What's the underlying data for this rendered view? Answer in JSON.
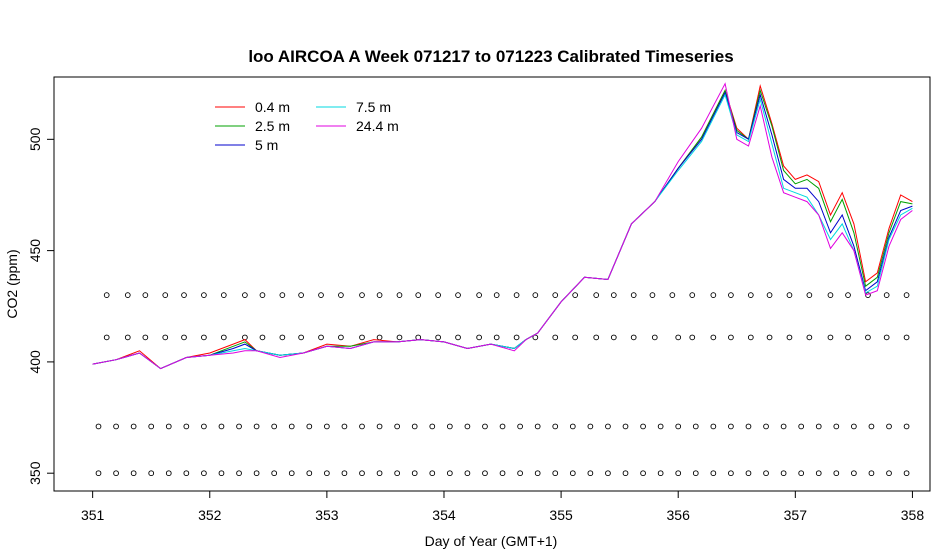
{
  "chart_data": {
    "type": "line",
    "title": "loo AIRCOA A  Week 071217 to 071223  Calibrated Timeseries",
    "xlabel": "Day of Year (GMT+1)",
    "ylabel": "CO2 (ppm)",
    "xlim": [
      350.67,
      358.15
    ],
    "ylim": [
      342,
      528
    ],
    "x_ticks": [
      351,
      352,
      353,
      354,
      355,
      356,
      357,
      358
    ],
    "y_ticks": [
      350,
      400,
      450,
      500
    ],
    "legend_position": "top-left",
    "series": [
      {
        "name": "0.4 m",
        "color": "#ff0000",
        "x": [
          351.0,
          351.2,
          351.4,
          351.58,
          351.8,
          352.0,
          352.2,
          352.3,
          352.4,
          352.6,
          352.8,
          353.0,
          353.2,
          353.4,
          353.6,
          353.8,
          354.0,
          354.2,
          354.4,
          354.6,
          354.7,
          354.8,
          355.0,
          355.2,
          355.4,
          355.6,
          355.8,
          356.0,
          356.2,
          356.4,
          356.5,
          356.6,
          356.7,
          356.8,
          356.9,
          357.0,
          357.1,
          357.2,
          357.3,
          357.4,
          357.5,
          357.6,
          357.7,
          357.8,
          357.9,
          358.0
        ],
        "y": [
          399,
          401,
          405,
          397,
          402,
          404,
          408,
          410,
          405,
          403,
          404,
          408,
          407,
          410,
          409,
          410,
          409,
          406,
          408,
          406,
          410,
          413,
          427,
          438,
          437,
          462,
          472,
          487,
          501,
          522,
          505,
          500,
          524,
          507,
          488,
          482,
          484,
          481,
          466,
          476,
          462,
          436,
          440,
          460,
          475,
          472
        ]
      },
      {
        "name": "2.5 m",
        "color": "#00a000",
        "x": [
          351.0,
          351.2,
          351.4,
          351.58,
          351.8,
          352.0,
          352.2,
          352.3,
          352.4,
          352.6,
          352.8,
          353.0,
          353.2,
          353.4,
          353.6,
          353.8,
          354.0,
          354.2,
          354.4,
          354.6,
          354.7,
          354.8,
          355.0,
          355.2,
          355.4,
          355.6,
          355.8,
          356.0,
          356.2,
          356.4,
          356.5,
          356.6,
          356.7,
          356.8,
          356.9,
          357.0,
          357.1,
          357.2,
          357.3,
          357.4,
          357.5,
          357.6,
          357.7,
          357.8,
          357.9,
          358.0
        ],
        "y": [
          399,
          401,
          404,
          397,
          402,
          403,
          407,
          409,
          405,
          403,
          404,
          407,
          407,
          409,
          409,
          410,
          409,
          406,
          408,
          406,
          410,
          413,
          427,
          438,
          437,
          462,
          472,
          487,
          501,
          522,
          504,
          500,
          522,
          506,
          486,
          480,
          482,
          478,
          463,
          473,
          458,
          434,
          438,
          458,
          472,
          471
        ]
      },
      {
        "name": "5 m",
        "color": "#0000cc",
        "x": [
          351.0,
          351.2,
          351.4,
          351.58,
          351.8,
          352.0,
          352.2,
          352.3,
          352.4,
          352.6,
          352.8,
          353.0,
          353.2,
          353.4,
          353.6,
          353.8,
          354.0,
          354.2,
          354.4,
          354.6,
          354.7,
          354.8,
          355.0,
          355.2,
          355.4,
          355.6,
          355.8,
          356.0,
          356.2,
          356.4,
          356.5,
          356.6,
          356.7,
          356.8,
          356.9,
          357.0,
          357.1,
          357.2,
          357.3,
          357.4,
          357.5,
          357.6,
          357.7,
          357.8,
          357.9,
          358.0
        ],
        "y": [
          399,
          401,
          404,
          397,
          402,
          403,
          406,
          408,
          405,
          403,
          404,
          407,
          406,
          409,
          409,
          410,
          409,
          406,
          408,
          406,
          410,
          413,
          427,
          438,
          437,
          462,
          472,
          487,
          500,
          521,
          503,
          500,
          520,
          502,
          482,
          478,
          478,
          472,
          458,
          466,
          452,
          432,
          436,
          456,
          468,
          470
        ]
      },
      {
        "name": "7.5 m",
        "color": "#00d8e0",
        "x": [
          351.0,
          351.2,
          351.4,
          351.58,
          351.8,
          352.0,
          352.2,
          352.3,
          352.4,
          352.6,
          352.8,
          353.0,
          353.2,
          353.4,
          353.6,
          353.8,
          354.0,
          354.2,
          354.4,
          354.6,
          354.7,
          354.8,
          355.0,
          355.2,
          355.4,
          355.6,
          355.8,
          356.0,
          356.2,
          356.4,
          356.5,
          356.6,
          356.7,
          356.8,
          356.9,
          357.0,
          357.1,
          357.2,
          357.3,
          357.4,
          357.5,
          357.6,
          357.7,
          357.8,
          357.9,
          358.0
        ],
        "y": [
          399,
          401,
          404,
          397,
          402,
          403,
          405,
          406,
          405,
          403,
          404,
          407,
          406,
          409,
          409,
          410,
          409,
          406,
          408,
          406,
          410,
          413,
          427,
          438,
          437,
          462,
          472,
          486,
          499,
          520,
          502,
          499,
          518,
          498,
          478,
          476,
          474,
          466,
          455,
          462,
          450,
          431,
          434,
          455,
          466,
          469
        ]
      },
      {
        "name": "24.4 m",
        "color": "#e000e0",
        "x": [
          351.0,
          351.2,
          351.4,
          351.58,
          351.8,
          352.0,
          352.2,
          352.3,
          352.4,
          352.6,
          352.8,
          353.0,
          353.2,
          353.4,
          353.6,
          353.8,
          354.0,
          354.2,
          354.4,
          354.6,
          354.7,
          354.8,
          355.0,
          355.2,
          355.4,
          355.6,
          355.8,
          356.0,
          356.2,
          356.4,
          356.5,
          356.6,
          356.7,
          356.8,
          356.9,
          357.0,
          357.1,
          357.2,
          357.3,
          357.4,
          357.5,
          357.6,
          357.7,
          357.8,
          357.9,
          358.0
        ],
        "y": [
          399,
          401,
          404,
          397,
          402,
          403,
          404,
          405,
          405,
          402,
          404,
          407,
          406,
          409,
          409,
          410,
          409,
          406,
          408,
          405,
          410,
          413,
          427,
          438,
          437,
          462,
          472,
          490,
          505,
          525,
          500,
          497,
          515,
          492,
          476,
          474,
          472,
          466,
          451,
          458,
          450,
          430,
          432,
          452,
          464,
          468
        ]
      }
    ],
    "marker_rows": [
      {
        "y": 430,
        "x": [
          351.12,
          351.3,
          351.45,
          351.62,
          351.78,
          351.95,
          352.12,
          352.3,
          352.45,
          352.62,
          352.78,
          352.95,
          353.12,
          353.3,
          353.45,
          353.62,
          353.78,
          353.95,
          354.12,
          354.3,
          354.45,
          354.62,
          354.78,
          354.95,
          355.12,
          355.3,
          355.45,
          355.62,
          355.78,
          355.95,
          356.12,
          356.3,
          356.45,
          356.62,
          356.78,
          356.95,
          357.12,
          357.3,
          357.45,
          357.62,
          357.78,
          357.95
        ]
      },
      {
        "y": 411,
        "x": [
          351.12,
          351.3,
          351.45,
          351.62,
          351.78,
          351.95,
          352.12,
          352.3,
          352.45,
          352.62,
          352.78,
          352.95,
          353.12,
          353.3,
          353.45,
          353.62,
          353.78,
          353.95,
          354.12,
          354.3,
          354.45,
          354.62,
          354.78,
          354.95,
          355.12,
          355.3,
          355.45,
          355.62,
          355.8,
          356.0,
          356.12,
          356.3,
          356.45,
          356.62,
          356.78,
          356.95,
          357.12,
          357.3,
          357.45,
          357.62,
          357.78,
          357.95
        ]
      },
      {
        "y": 371,
        "x": [
          351.05,
          351.2,
          351.35,
          351.5,
          351.65,
          351.8,
          351.95,
          352.1,
          352.25,
          352.4,
          352.55,
          352.7,
          352.85,
          353.0,
          353.15,
          353.3,
          353.45,
          353.6,
          353.75,
          353.9,
          354.05,
          354.2,
          354.35,
          354.5,
          354.65,
          354.8,
          354.95,
          355.1,
          355.25,
          355.4,
          355.55,
          355.7,
          355.85,
          356.0,
          356.15,
          356.3,
          356.45,
          356.6,
          356.75,
          356.9,
          357.05,
          357.2,
          357.35,
          357.5,
          357.65,
          357.8,
          357.95
        ]
      },
      {
        "y": 350,
        "x": [
          351.05,
          351.2,
          351.35,
          351.5,
          351.65,
          351.8,
          351.95,
          352.1,
          352.25,
          352.4,
          352.55,
          352.7,
          352.85,
          353.0,
          353.15,
          353.3,
          353.45,
          353.6,
          353.75,
          353.9,
          354.05,
          354.2,
          354.35,
          354.5,
          354.65,
          354.8,
          354.95,
          355.1,
          355.25,
          355.4,
          355.55,
          355.7,
          355.85,
          356.0,
          356.15,
          356.3,
          356.45,
          356.6,
          356.75,
          356.9,
          357.05,
          357.2,
          357.35,
          357.5,
          357.65,
          357.8,
          357.95
        ]
      }
    ]
  }
}
